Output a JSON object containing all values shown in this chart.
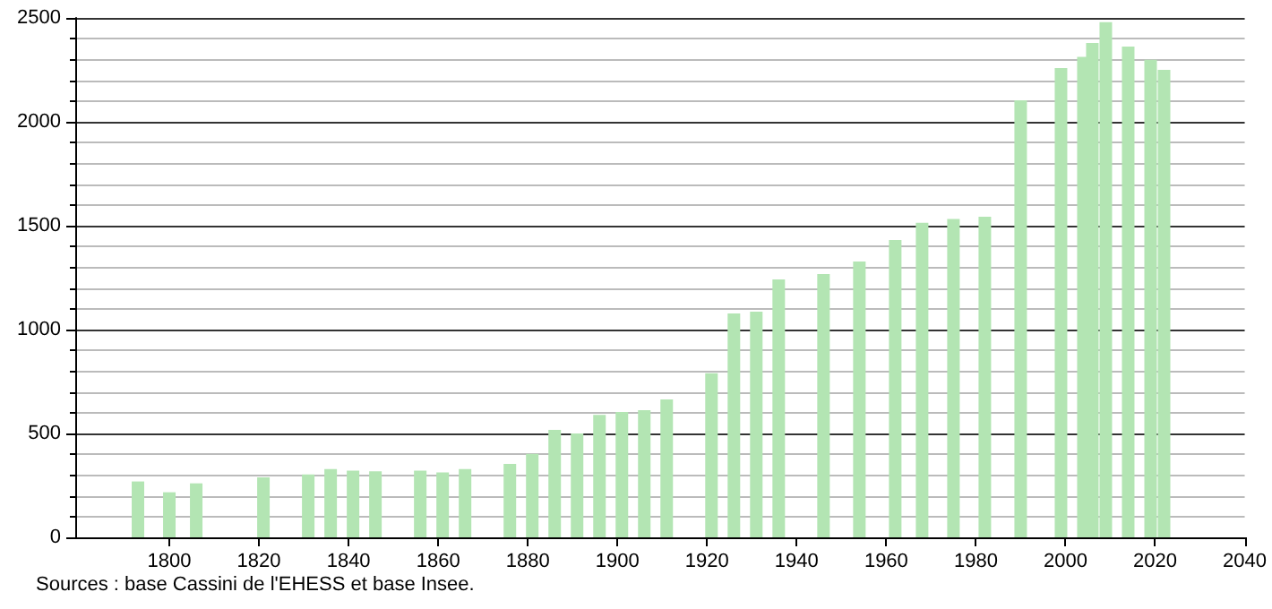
{
  "chart_data": {
    "type": "bar",
    "x": [
      1793,
      1800,
      1806,
      1821,
      1831,
      1836,
      1841,
      1846,
      1856,
      1861,
      1866,
      1876,
      1881,
      1886,
      1891,
      1896,
      1901,
      1906,
      1911,
      1921,
      1926,
      1931,
      1936,
      1946,
      1954,
      1962,
      1968,
      1975,
      1982,
      1990,
      1999,
      2004,
      2006,
      2009,
      2014,
      2019,
      2022
    ],
    "values": [
      269,
      217,
      260,
      289,
      303,
      329,
      321,
      318,
      321,
      312,
      329,
      353,
      402,
      517,
      500,
      589,
      603,
      612,
      664,
      790,
      1078,
      1086,
      1241,
      1267,
      1328,
      1431,
      1514,
      1532,
      1543,
      2103,
      2259,
      2313,
      2379,
      2480,
      2362,
      2299,
      2250
    ],
    "color": "#b3e5b3",
    "xlim": [
      1779,
      2040
    ],
    "xticks": [
      1800,
      1820,
      1840,
      1860,
      1880,
      1900,
      1920,
      1940,
      1960,
      1980,
      2000,
      2020,
      2040
    ],
    "ylim": [
      0,
      2500
    ],
    "yticks": [
      0,
      500,
      1000,
      1500,
      2000,
      2500
    ],
    "grid": "y",
    "annotations": [
      "Sources : base Cassini de l'EHESS et base Insee."
    ]
  }
}
